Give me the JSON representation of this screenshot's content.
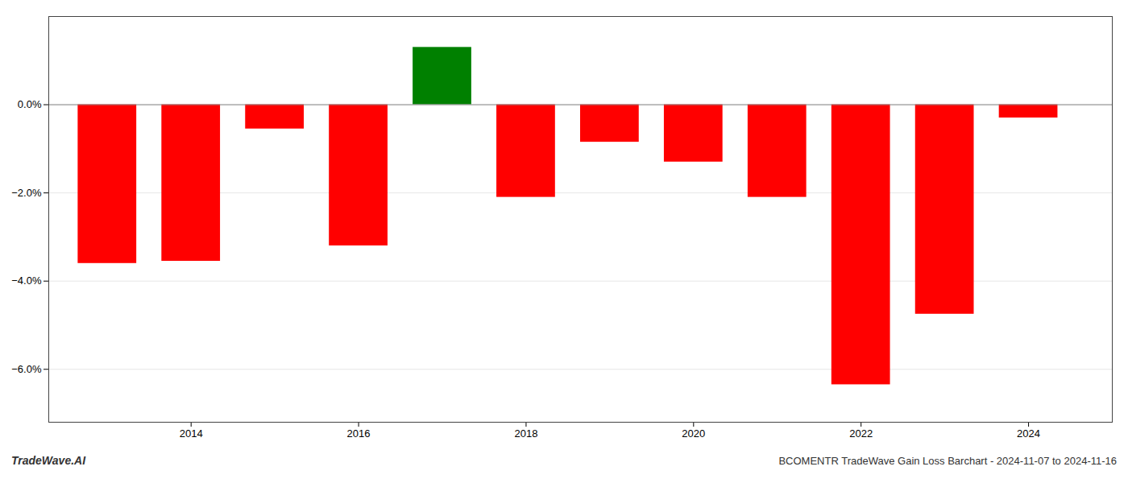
{
  "chart_data": {
    "type": "bar",
    "title": "BCOMENTR TradeWave Gain Loss Barchart - 2024-11-07 to 2024-11-16",
    "annotations": [
      "TradeWave.AI"
    ],
    "x": [
      2013,
      2014,
      2015,
      2016,
      2017,
      2018,
      2019,
      2020,
      2021,
      2022,
      2023,
      2024
    ],
    "values": [
      -3.6,
      -3.55,
      -0.55,
      -3.2,
      1.3,
      -2.1,
      -0.85,
      -1.3,
      -2.1,
      -6.35,
      -4.75,
      -0.3
    ],
    "colors": [
      "#ff0000",
      "#ff0000",
      "#ff0000",
      "#ff0000",
      "#008000",
      "#ff0000",
      "#ff0000",
      "#ff0000",
      "#ff0000",
      "#ff0000",
      "#ff0000",
      "#ff0000"
    ],
    "xlim": [
      2012.3,
      2025.0
    ],
    "xticks": [
      2014,
      2016,
      2018,
      2020,
      2022,
      2024
    ],
    "ylim": [
      -7.2,
      2.0
    ],
    "yticks": [
      {
        "value": 0.0,
        "label": "0.0%"
      },
      {
        "value": -2.0,
        "label": "−2.0%"
      },
      {
        "value": -4.0,
        "label": "−4.0%"
      },
      {
        "value": -6.0,
        "label": "−6.0%"
      }
    ],
    "grid": true
  }
}
